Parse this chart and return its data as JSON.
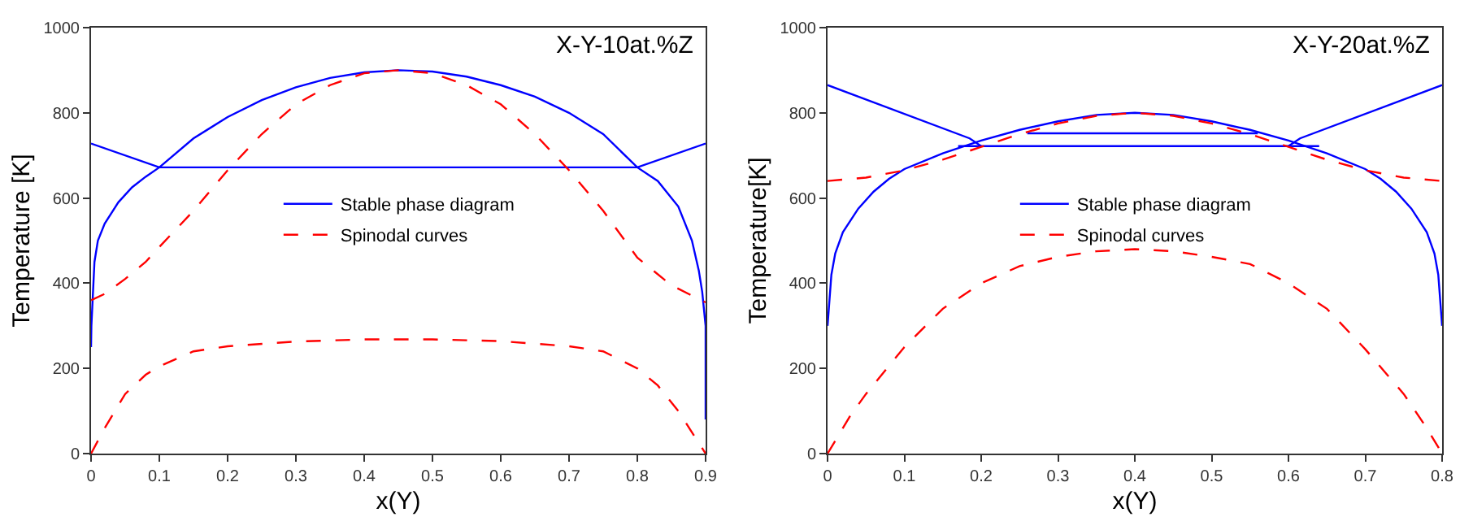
{
  "chart_data": [
    {
      "type": "line",
      "title": "X-Y-10at.%Z",
      "xlabel": "x(Y)",
      "ylabel": "Temperature [K]",
      "xlim": [
        0,
        0.9
      ],
      "xticks": [
        0,
        0.1,
        0.2,
        0.3,
        0.4,
        0.5,
        0.6,
        0.7,
        0.8,
        0.9
      ],
      "ylim": [
        0,
        1000
      ],
      "yticks": [
        0,
        200,
        400,
        600,
        800,
        1000
      ],
      "grid": false,
      "legend": "center",
      "series": [
        {
          "name": "Stable phase diagram",
          "color": "#0000ff",
          "line_style": "solid",
          "x": [
            0,
            0.0005,
            0.005,
            0.01,
            0.02,
            0.04,
            0.06,
            0.08,
            0.1,
            0.15,
            0.2,
            0.25,
            0.3,
            0.35,
            0.4,
            0.45,
            0.5,
            0.55,
            0.6,
            0.65,
            0.7,
            0.75,
            0.8,
            0.83,
            0.86,
            0.88,
            0.89,
            0.895,
            0.9,
            0.9,
            null,
            0,
            0.1,
            0.8,
            0.9
          ],
          "values": [
            250,
            300,
            450,
            500,
            540,
            590,
            625,
            650,
            672,
            740,
            790,
            830,
            860,
            882,
            895,
            900,
            897,
            885,
            865,
            838,
            800,
            750,
            672,
            640,
            580,
            500,
            430,
            380,
            300,
            80,
            null,
            728,
            672,
            672,
            728
          ]
        },
        {
          "name": "Spinodal curves",
          "color": "#ff0000",
          "line_style": "dashed",
          "x": [
            0,
            0.02,
            0.05,
            0.08,
            0.1,
            0.15,
            0.2,
            0.25,
            0.3,
            0.35,
            0.4,
            0.45,
            0.5,
            0.55,
            0.6,
            0.65,
            0.7,
            0.75,
            0.8,
            0.85,
            0.9,
            null,
            0,
            0.02,
            0.05,
            0.08,
            0.1,
            0.15,
            0.2,
            0.3,
            0.4,
            0.5,
            0.6,
            0.7,
            0.75,
            0.8,
            0.83,
            0.86,
            0.88,
            0.9
          ],
          "values": [
            360,
            375,
            410,
            450,
            485,
            570,
            665,
            750,
            820,
            865,
            893,
            900,
            893,
            865,
            820,
            750,
            665,
            570,
            460,
            395,
            355,
            null,
            0,
            60,
            140,
            185,
            205,
            240,
            252,
            263,
            268,
            268,
            264,
            252,
            240,
            200,
            160,
            100,
            50,
            0
          ]
        }
      ]
    },
    {
      "type": "line",
      "title": "X-Y-20at.%Z",
      "xlabel": "x(Y)",
      "ylabel": "Temperature[K]",
      "xlim": [
        0,
        0.8
      ],
      "xticks": [
        0,
        0.1,
        0.2,
        0.3,
        0.4,
        0.5,
        0.6,
        0.7,
        0.8
      ],
      "ylim": [
        0,
        1000
      ],
      "yticks": [
        0,
        200,
        400,
        600,
        800,
        1000
      ],
      "grid": false,
      "legend": "center",
      "series": [
        {
          "name": "Stable phase diagram",
          "color": "#0000ff",
          "line_style": "solid",
          "x": [
            0,
            0.005,
            0.01,
            0.02,
            0.04,
            0.06,
            0.08,
            0.1,
            0.15,
            0.2,
            0.25,
            0.3,
            0.35,
            0.4,
            0.45,
            0.5,
            0.55,
            0.6,
            0.65,
            0.7,
            0.72,
            0.74,
            0.76,
            0.78,
            0.79,
            0.795,
            0.8,
            null,
            0,
            0.185,
            0.2,
            null,
            0.6,
            0.615,
            0.8,
            null,
            0.17,
            0.64,
            null,
            0.26,
            0.56
          ],
          "values": [
            300,
            420,
            470,
            520,
            575,
            615,
            645,
            668,
            705,
            735,
            760,
            780,
            795,
            800,
            795,
            780,
            760,
            735,
            705,
            668,
            645,
            615,
            575,
            520,
            470,
            420,
            300,
            null,
            865,
            740,
            722,
            null,
            722,
            740,
            865,
            null,
            722,
            722,
            null,
            752,
            752
          ]
        },
        {
          "name": "Spinodal curves",
          "color": "#ff0000",
          "line_style": "dashed",
          "x": [
            0,
            0.05,
            0.1,
            0.15,
            0.2,
            0.25,
            0.3,
            0.35,
            0.4,
            0.45,
            0.5,
            0.55,
            0.6,
            0.65,
            0.7,
            0.75,
            0.8,
            null,
            0,
            0.03,
            0.05,
            0.1,
            0.15,
            0.2,
            0.25,
            0.3,
            0.35,
            0.4,
            0.45,
            0.5,
            0.55,
            0.6,
            0.65,
            0.7,
            0.75,
            0.78,
            0.8
          ],
          "values": [
            640,
            648,
            665,
            690,
            720,
            750,
            775,
            793,
            800,
            793,
            775,
            750,
            720,
            690,
            665,
            648,
            640,
            null,
            0,
            90,
            140,
            250,
            340,
            400,
            440,
            462,
            475,
            480,
            475,
            462,
            445,
            400,
            340,
            245,
            140,
            60,
            0
          ]
        }
      ]
    }
  ]
}
